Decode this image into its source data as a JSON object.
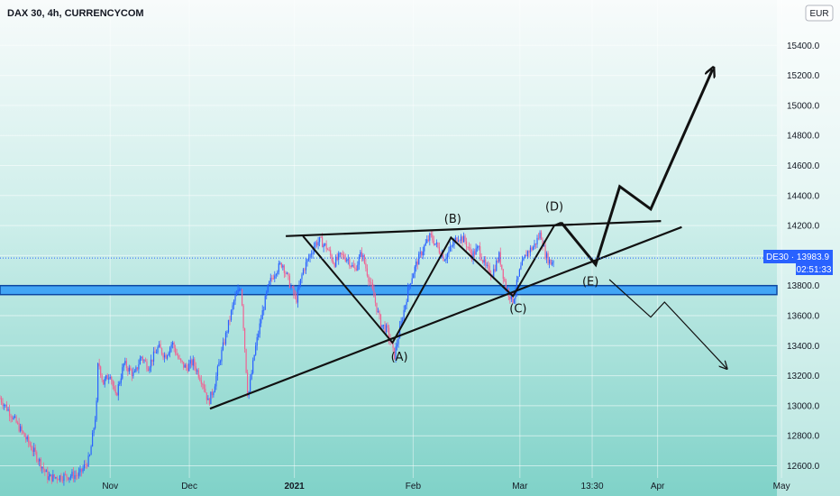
{
  "header": {
    "title": "DAX 30, 4h, CURRENCYCOM"
  },
  "currency_button": {
    "label": "EUR"
  },
  "price_badge": {
    "symbol_price": "DE30 · 13983.9",
    "countdown": "02:51:33"
  },
  "colors": {
    "bg_top": "#f8fbfb",
    "bg_bottom": "#7fd2c8",
    "up": "#2962ff",
    "down": "#f06292",
    "zone_fill": "#42a5f5",
    "zone_edge": "#0d47a1",
    "badge": "#2962ff",
    "line": "#111111"
  },
  "chart_data": {
    "type": "candlestick",
    "title": "DAX 30, 4h, CURRENCYCOM",
    "ylim": [
      12500,
      15640
    ],
    "y_ticks": [
      "12600.0",
      "12800.0",
      "13000.0",
      "13200.0",
      "13400.0",
      "13600.0",
      "13800.0",
      "14000.0",
      "14200.0",
      "14400.0",
      "14600.0",
      "14800.0",
      "15000.0",
      "15200.0",
      "15400.0"
    ],
    "x_ticks": [
      {
        "label": "Nov",
        "t": 3.2,
        "bold": false
      },
      {
        "label": "Dec",
        "t": 5.5,
        "bold": false
      },
      {
        "label": "2021",
        "t": 8.55,
        "bold": true
      },
      {
        "label": "Feb",
        "t": 12.0,
        "bold": false
      },
      {
        "label": "Mar",
        "t": 15.1,
        "bold": false
      },
      {
        "label": "13:30",
        "t": 17.2,
        "bold": false
      },
      {
        "label": "Apr",
        "t": 19.1,
        "bold": false
      },
      {
        "label": "May",
        "t": 22.7,
        "bold": false
      }
    ],
    "last_price": 13983.9,
    "support_zone": [
      13740,
      13800
    ],
    "price_path": [
      [
        0,
        13050
      ],
      [
        0.3,
        12950
      ],
      [
        0.7,
        12800
      ],
      [
        1.1,
        12650
      ],
      [
        1.4,
        12520
      ],
      [
        2.3,
        12540
      ],
      [
        2.6,
        12650
      ],
      [
        2.8,
        12980
      ],
      [
        2.85,
        13300
      ],
      [
        3.0,
        13150
      ],
      [
        3.2,
        13220
      ],
      [
        3.35,
        13050
      ],
      [
        3.6,
        13280
      ],
      [
        3.9,
        13200
      ],
      [
        4.1,
        13330
      ],
      [
        4.3,
        13260
      ],
      [
        4.6,
        13390
      ],
      [
        4.8,
        13330
      ],
      [
        5.0,
        13420
      ],
      [
        5.2,
        13300
      ],
      [
        5.4,
        13250
      ],
      [
        5.6,
        13290
      ],
      [
        5.9,
        13150
      ],
      [
        6.05,
        13020
      ],
      [
        6.2,
        13110
      ],
      [
        6.4,
        13320
      ],
      [
        6.6,
        13510
      ],
      [
        6.8,
        13700
      ],
      [
        7.0,
        13800
      ],
      [
        7.2,
        13050
      ],
      [
        7.4,
        13360
      ],
      [
        7.6,
        13600
      ],
      [
        7.8,
        13800
      ],
      [
        8.0,
        13900
      ],
      [
        8.2,
        13950
      ],
      [
        8.4,
        13820
      ],
      [
        8.6,
        13700
      ],
      [
        8.8,
        13900
      ],
      [
        9.0,
        14000
      ],
      [
        9.15,
        14080
      ],
      [
        9.3,
        14100
      ],
      [
        9.5,
        14050
      ],
      [
        9.7,
        13950
      ],
      [
        9.9,
        14000
      ],
      [
        10.1,
        13980
      ],
      [
        10.3,
        13900
      ],
      [
        10.5,
        14020
      ],
      [
        10.7,
        13860
      ],
      [
        10.9,
        13690
      ],
      [
        11.05,
        13550
      ],
      [
        11.25,
        13500
      ],
      [
        11.45,
        13330
      ],
      [
        11.7,
        13600
      ],
      [
        11.9,
        13820
      ],
      [
        12.1,
        13950
      ],
      [
        12.3,
        14050
      ],
      [
        12.5,
        14130
      ],
      [
        12.7,
        14060
      ],
      [
        12.9,
        13980
      ],
      [
        13.1,
        14050
      ],
      [
        13.3,
        14130
      ],
      [
        13.5,
        14100
      ],
      [
        13.7,
        14000
      ],
      [
        13.9,
        14050
      ],
      [
        14.1,
        13920
      ],
      [
        14.3,
        13880
      ],
      [
        14.5,
        14000
      ],
      [
        14.7,
        13780
      ],
      [
        14.9,
        13700
      ],
      [
        15.1,
        13900
      ],
      [
        15.3,
        14020
      ],
      [
        15.5,
        14060
      ],
      [
        15.7,
        14150
      ],
      [
        15.85,
        14000
      ],
      [
        16.0,
        13950
      ],
      [
        16.1,
        13983.9
      ]
    ],
    "pattern_lines": [
      {
        "name": "upper-trendline",
        "points": [
          [
            8.3,
            14130
          ],
          [
            19.2,
            14230
          ]
        ],
        "stroke": 2.2
      },
      {
        "name": "lower-trendline",
        "points": [
          [
            6.1,
            12980
          ],
          [
            19.8,
            14190
          ]
        ],
        "stroke": 2.2
      },
      {
        "name": "wave-zigzag",
        "points": [
          [
            8.8,
            14130
          ],
          [
            11.4,
            13420
          ],
          [
            13.1,
            14120
          ],
          [
            14.9,
            13730
          ],
          [
            16.1,
            14200
          ],
          [
            16.3,
            14220
          ]
        ],
        "stroke": 2
      },
      {
        "name": "bullish-projection",
        "points": [
          [
            16.3,
            14220
          ],
          [
            17.3,
            13940
          ],
          [
            18.0,
            14460
          ],
          [
            18.9,
            14310
          ],
          [
            20.7,
            15240
          ]
        ],
        "stroke": 3
      },
      {
        "name": "bearish-projection",
        "points": [
          [
            17.7,
            13840
          ],
          [
            18.9,
            13590
          ],
          [
            19.3,
            13690
          ],
          [
            21.1,
            13250
          ]
        ],
        "stroke": 1.2
      }
    ],
    "wave_labels": [
      {
        "text": "(A)",
        "t": 11.6,
        "v": 13300
      },
      {
        "text": "(B)",
        "t": 13.15,
        "v": 14220
      },
      {
        "text": "(C)",
        "t": 15.05,
        "v": 13620
      },
      {
        "text": "(D)",
        "t": 16.1,
        "v": 14300
      },
      {
        "text": "(E)",
        "t": 17.15,
        "v": 13800
      }
    ]
  }
}
